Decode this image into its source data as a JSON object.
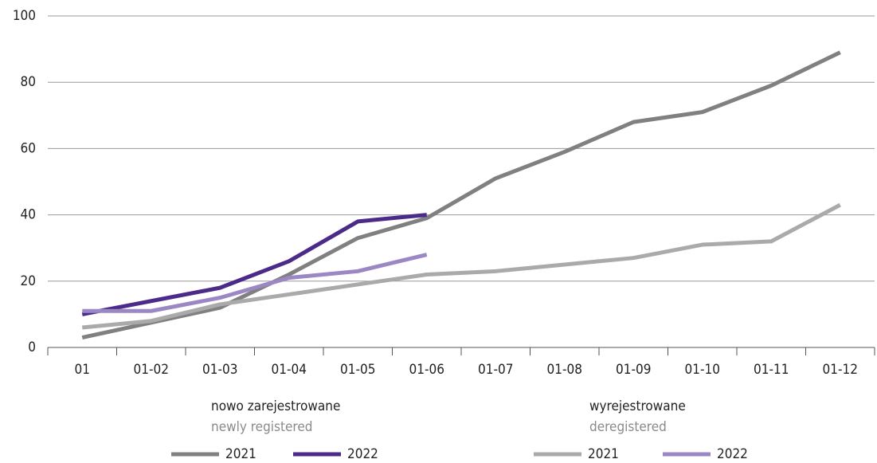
{
  "chart_data": {
    "type": "line",
    "categories": [
      "01",
      "01-02",
      "01-03",
      "01-04",
      "01-05",
      "01-06",
      "01-07",
      "01-08",
      "01-09",
      "01-10",
      "01-11",
      "01-12"
    ],
    "series": [
      {
        "name": "2021",
        "color": "#808080",
        "values": [
          3,
          7.5,
          12,
          22,
          33,
          39,
          51,
          59,
          68,
          71,
          79,
          89
        ]
      },
      {
        "name": "2022",
        "color": "#4b2a8a",
        "values": [
          10,
          14,
          18,
          26,
          38,
          40,
          null,
          null,
          null,
          null,
          null,
          null
        ]
      },
      {
        "name": "2021",
        "color": "#aaaaaa",
        "values": [
          6,
          8,
          13,
          16,
          19,
          22,
          23,
          25,
          27,
          31,
          32,
          43
        ]
      },
      {
        "name": "2022",
        "color": "#9b87c4",
        "values": [
          11,
          11,
          15,
          21,
          23,
          28,
          null,
          null,
          null,
          null,
          null,
          null
        ]
      }
    ],
    "legend_groups": [
      {
        "title": "nowo zarejestrowane",
        "subtitle": "newly registered"
      },
      {
        "title": "wyrejestrowane",
        "subtitle": "deregistered"
      }
    ],
    "ylim": [
      0,
      100
    ],
    "yticks": [
      0,
      20,
      40,
      60,
      80,
      100
    ],
    "grid": true
  }
}
